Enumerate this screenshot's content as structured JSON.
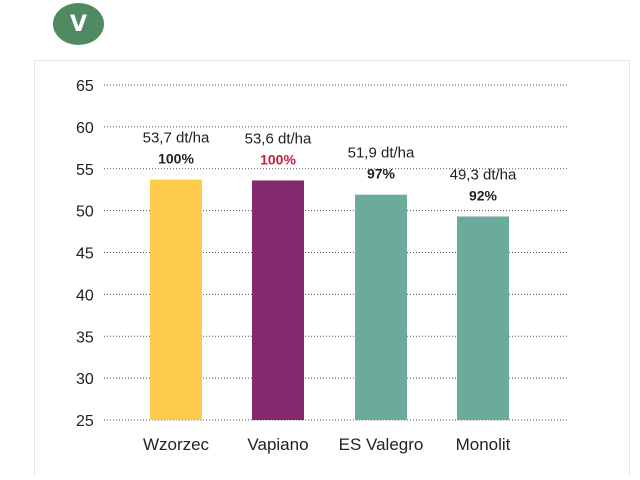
{
  "badge": {
    "label": "V",
    "color": "#4f8a60"
  },
  "chart_data": {
    "type": "bar",
    "categories": [
      "Wzorzec",
      "Vapiano",
      "ES Valegro",
      "Monolit"
    ],
    "values": [
      53.7,
      53.6,
      51.9,
      49.3
    ],
    "value_labels": [
      "53,7 dt/ha",
      "53,6 dt/ha",
      "51,9 dt/ha",
      "49,3 dt/ha"
    ],
    "percent_labels": [
      "100%",
      "100%",
      "97%",
      "92%"
    ],
    "percent_label_colors": [
      "#222222",
      "#c8203c",
      "#222222",
      "#222222"
    ],
    "colors": [
      "#fccb4c",
      "#83296e",
      "#6aab9b",
      "#6aab9b"
    ],
    "yticks": [
      25,
      30,
      35,
      40,
      45,
      50,
      55,
      60,
      65
    ],
    "ylim": [
      25,
      65
    ],
    "grid": true,
    "grid_style": "dotted"
  }
}
